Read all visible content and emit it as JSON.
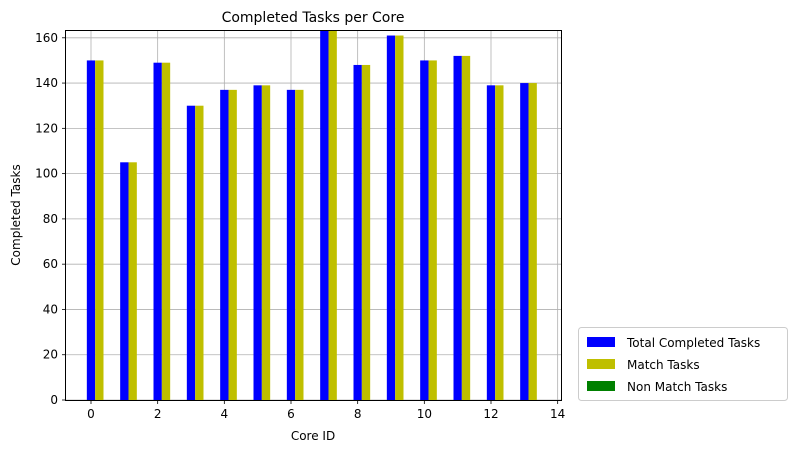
{
  "chart_data": {
    "type": "bar",
    "title": "Completed Tasks per Core",
    "xlabel": "Core ID",
    "ylabel": "Completed Tasks",
    "x": [
      0,
      1,
      2,
      3,
      4,
      5,
      6,
      7,
      8,
      9,
      10,
      11,
      12,
      13
    ],
    "xlim": [
      -0.75,
      14.1
    ],
    "ylim": [
      0,
      163
    ],
    "xticks": [
      0,
      2,
      4,
      6,
      8,
      10,
      12,
      14
    ],
    "yticks": [
      0,
      20,
      40,
      60,
      80,
      100,
      120,
      140,
      160
    ],
    "grid": true,
    "legend_position": "outside-lower-right",
    "series": [
      {
        "name": "Total Completed Tasks",
        "color": "#0000ff",
        "offset": 0,
        "values": [
          150,
          105,
          149,
          130,
          137,
          139,
          137,
          163,
          148,
          161,
          150,
          152,
          139,
          140
        ]
      },
      {
        "name": "Match Tasks",
        "color": "#bfbf00",
        "offset": 0.25,
        "values": [
          150,
          105,
          149,
          130,
          137,
          139,
          137,
          163,
          148,
          161,
          150,
          152,
          139,
          140
        ]
      },
      {
        "name": "Non Match Tasks",
        "color": "#008000",
        "offset": 0.5,
        "values": [
          0,
          0,
          0,
          0,
          0,
          0,
          0,
          0,
          0,
          0,
          0,
          0,
          0,
          0
        ]
      }
    ],
    "bar_width": 0.25
  }
}
